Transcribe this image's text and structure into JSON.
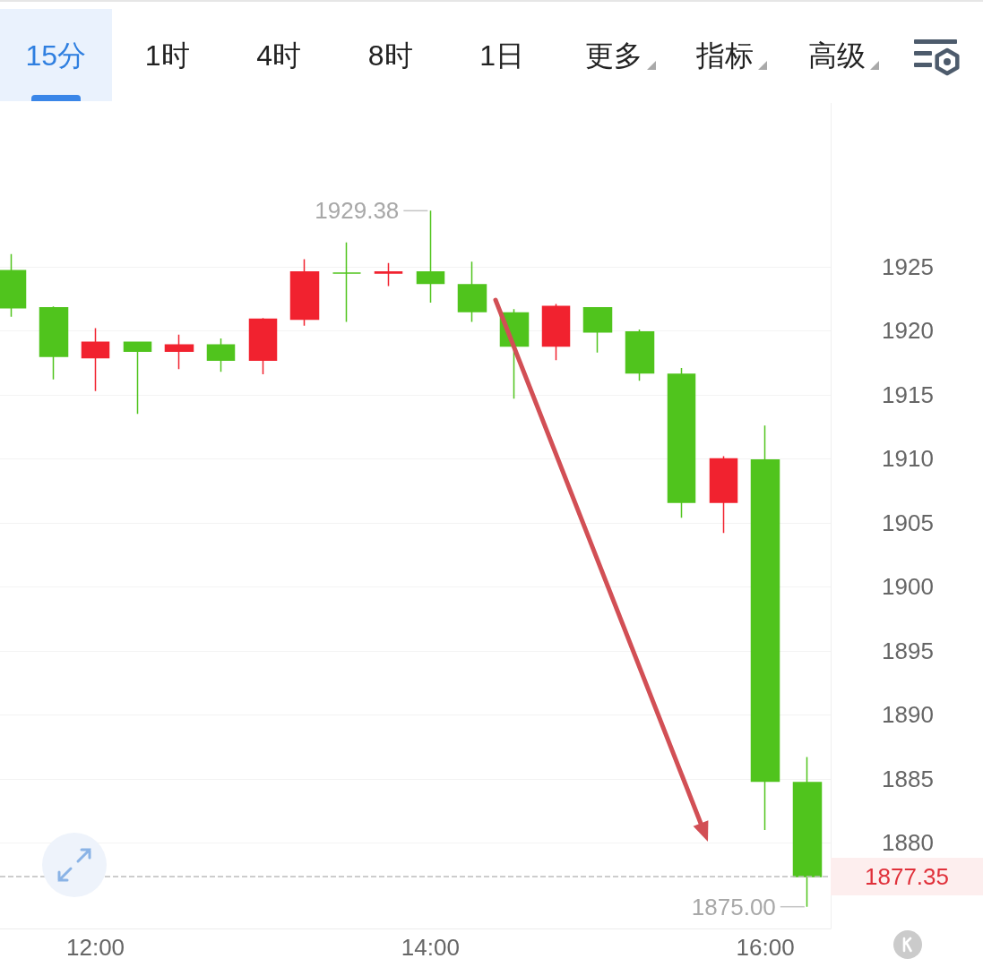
{
  "chart_data": {
    "type": "candlestick",
    "annotations": [
      "15分",
      "1时",
      "4时",
      "8时",
      "1日",
      "更多",
      "指标",
      "高级",
      {
        "text": "1929.38",
        "x": 14,
        "y": 1929.38
      },
      {
        "text": "1875.00",
        "x": 16.25,
        "y": 1875.0
      }
    ],
    "x": [
      11.5,
      11.75,
      12,
      12.25,
      12.5,
      12.75,
      13,
      13.25,
      13.5,
      13.75,
      14,
      14.25,
      14.5,
      14.75,
      15,
      15.25,
      15.5,
      15.75,
      16,
      16.25
    ],
    "ohlc": [
      [
        1924.7,
        1926.0,
        1921.1,
        1921.8
      ],
      [
        1921.8,
        1921.9,
        1916.2,
        1918.0
      ],
      [
        1917.9,
        1920.2,
        1915.3,
        1919.1
      ],
      [
        1919.1,
        1919.1,
        1913.5,
        1918.4
      ],
      [
        1918.4,
        1919.7,
        1917.0,
        1918.9
      ],
      [
        1918.9,
        1919.4,
        1916.8,
        1917.7
      ],
      [
        1917.7,
        1921.0,
        1916.6,
        1920.9
      ],
      [
        1920.9,
        1925.6,
        1920.4,
        1924.6
      ],
      [
        1924.5,
        1926.9,
        1920.7,
        1924.5
      ],
      [
        1924.5,
        1925.3,
        1923.5,
        1924.6
      ],
      [
        1924.6,
        1929.38,
        1922.2,
        1923.7
      ],
      [
        1923.6,
        1925.4,
        1920.7,
        1921.5
      ],
      [
        1921.4,
        1921.7,
        1914.7,
        1918.8
      ],
      [
        1918.8,
        1922.1,
        1917.7,
        1921.9
      ],
      [
        1921.8,
        1921.8,
        1918.3,
        1919.9
      ],
      [
        1919.9,
        1920.1,
        1916.1,
        1916.7
      ],
      [
        1916.6,
        1917.1,
        1905.4,
        1906.6
      ],
      [
        1906.6,
        1910.2,
        1904.2,
        1910.0
      ],
      [
        1909.9,
        1912.6,
        1881.0,
        1884.8
      ],
      [
        1884.7,
        1886.7,
        1875.0,
        1877.35
      ]
    ],
    "colors": [
      "#50c41d",
      "#50c41d",
      "#f1222f",
      "#50c41d",
      "#f1222f",
      "#50c41d",
      "#f1222f",
      "#f1222f",
      "#50c41d",
      "#f1222f",
      "#50c41d",
      "#50c41d",
      "#50c41d",
      "#f1222f",
      "#50c41d",
      "#50c41d",
      "#50c41d",
      "#f1222f",
      "#50c41d",
      "#50c41d"
    ],
    "xlim": [
      11.43,
      16.39
    ],
    "xticks": [
      {
        "value": 12,
        "label": "12:00"
      },
      {
        "value": 14,
        "label": "14:00"
      },
      {
        "value": 16,
        "label": "16:00"
      }
    ],
    "ylim": [
      1873.3,
      1937.8
    ],
    "yticks": [
      1880,
      1885,
      1890,
      1895,
      1900,
      1905,
      1910,
      1915,
      1920,
      1925
    ],
    "grid": "y",
    "ref_lines": [
      {
        "axis": "y",
        "value": 1877.35,
        "label": "1877.35",
        "color": "#bdbdbd",
        "line_style": "dashed"
      }
    ]
  }
}
